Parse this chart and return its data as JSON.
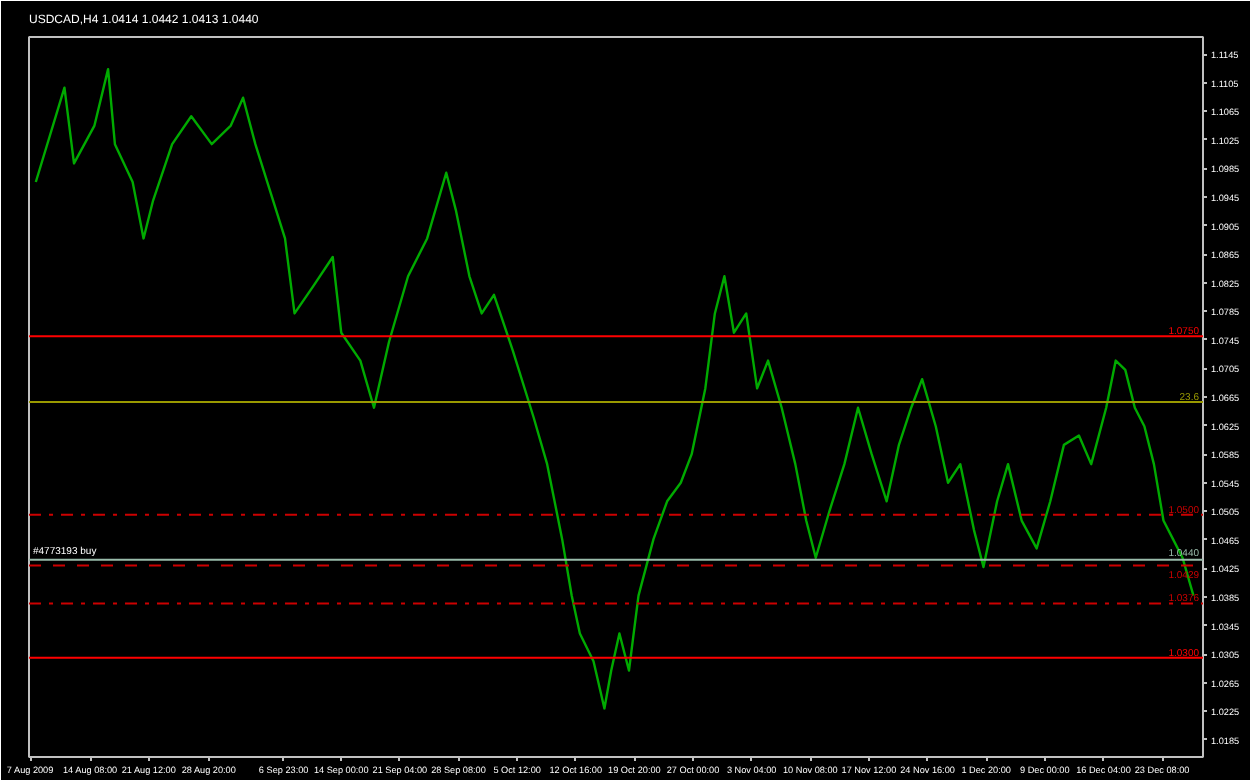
{
  "chart_data": {
    "type": "line",
    "title": "USDCAD,H4  1.0414 1.0442 1.0413 1.0440",
    "x": [
      "2009-08-07T16:00",
      "2009-08-11T04:00",
      "2009-08-12T08:00",
      "2009-08-14T20:00",
      "2009-08-16T12:00",
      "2009-08-17T08:00",
      "2009-08-19T12:00",
      "2009-08-20T20:00",
      "2009-08-22T00:00",
      "2009-08-24T08:00",
      "2009-08-26T16:00",
      "2009-08-29T04:00",
      "2009-08-31T12:00",
      "2009-09-02T00:00",
      "2009-09-03T12:00",
      "2009-09-07T03:00",
      "2009-09-08T07:00",
      "2009-09-10T15:00",
      "2009-09-12T23:00",
      "2009-09-14T00:00",
      "2009-09-16T08:00",
      "2009-09-18T00:00",
      "2009-09-19T20:00",
      "2009-09-22T04:00",
      "2009-09-24T12:00",
      "2009-09-26T20:00",
      "2009-09-28T00:00",
      "2009-09-29T16:00",
      "2009-10-01T04:00",
      "2009-10-02T16:00",
      "2009-10-05T00:00",
      "2009-10-07T12:00",
      "2009-10-09T04:00",
      "2009-10-11T00:00",
      "2009-10-12T04:00",
      "2009-10-13T04:00",
      "2009-10-14T20:00",
      "2009-10-16T04:00",
      "2009-10-17T00:00",
      "2009-10-18T00:00",
      "2009-10-19T04:00",
      "2009-10-20T08:00",
      "2009-10-22T04:00",
      "2009-10-23T20:00",
      "2009-10-25T12:00",
      "2009-10-26T20:00",
      "2009-10-28T12:00",
      "2009-10-29T16:00",
      "2009-10-30T20:00",
      "2009-11-01T00:00",
      "2009-11-02T12:00",
      "2009-11-03T20:00",
      "2009-11-05T04:00",
      "2009-11-06T20:00",
      "2009-11-08T12:00",
      "2009-11-09T20:00",
      "2009-11-11T00:00",
      "2009-11-12T16:00",
      "2009-11-14T12:00",
      "2009-11-16T04:00",
      "2009-11-17T20:00",
      "2009-11-19T16:00",
      "2009-11-21T04:00",
      "2009-11-22T16:00",
      "2009-11-24T00:00",
      "2009-11-25T16:00",
      "2009-11-27T04:00",
      "2009-11-28T16:00",
      "2009-11-30T08:00",
      "2009-12-01T12:00",
      "2009-12-03T04:00",
      "2009-12-04T12:00",
      "2009-12-06T04:00",
      "2009-12-08T00:00",
      "2009-12-09T16:00",
      "2009-12-11T08:00",
      "2009-12-13T04:00",
      "2009-12-14T16:00",
      "2009-12-16T12:00",
      "2009-12-17T16:00",
      "2009-12-18T20:00",
      "2009-12-20T00:00",
      "2009-12-21T04:00",
      "2009-12-22T08:00",
      "2009-12-23T12:00",
      "2009-12-24T16:00",
      "2009-12-25T20:00",
      "2009-12-27T04:00"
    ],
    "series": [
      {
        "color": "#00aa00",
        "values": [
          1.0966,
          1.1098,
          1.0992,
          1.1045,
          1.1124,
          1.1019,
          1.0966,
          1.0887,
          1.094,
          1.1019,
          1.1058,
          1.1019,
          1.1045,
          1.1084,
          1.1019,
          1.0887,
          1.0782,
          1.0821,
          1.0861,
          1.0755,
          1.0716,
          1.065,
          1.0742,
          1.0834,
          1.0887,
          1.0979,
          1.0927,
          1.0834,
          1.0782,
          1.0808,
          1.0729,
          1.0637,
          1.0571,
          1.0466,
          1.0387,
          1.0334,
          1.0295,
          1.0229,
          1.0282,
          1.0334,
          1.0282,
          1.0387,
          1.0466,
          1.0519,
          1.0545,
          1.0585,
          1.0677,
          1.0782,
          1.0834,
          1.0755,
          1.0782,
          1.0677,
          1.0716,
          1.065,
          1.0571,
          1.0492,
          1.044,
          1.0505,
          1.0571,
          1.065,
          1.0585,
          1.0519,
          1.0598,
          1.065,
          1.069,
          1.0624,
          1.0545,
          1.0571,
          1.0479,
          1.0427,
          1.0519,
          1.0571,
          1.0492,
          1.0453,
          1.0519,
          1.0598,
          1.0611,
          1.0571,
          1.065,
          1.0716,
          1.0703,
          1.065,
          1.0624,
          1.0571,
          1.0492,
          1.0466,
          1.044,
          1.0387
        ]
      }
    ],
    "xlim": [
      "2009-08-06T20:00",
      "2009-12-28T08:00"
    ],
    "xticks": [
      {
        "value": "2009-08-07T00:00",
        "label": "7 Aug 2009"
      },
      {
        "value": "2009-08-14T08:00",
        "label": "14 Aug 08:00"
      },
      {
        "value": "2009-08-21T12:00",
        "label": "21 Aug 12:00"
      },
      {
        "value": "2009-08-28T20:00",
        "label": "28 Aug 20:00"
      },
      {
        "value": "2009-09-06T23:00",
        "label": "6 Sep 23:00"
      },
      {
        "value": "2009-09-14T00:00",
        "label": "14 Sep 00:00"
      },
      {
        "value": "2009-09-21T04:00",
        "label": "21 Sep 04:00"
      },
      {
        "value": "2009-09-28T08:00",
        "label": "28 Sep 08:00"
      },
      {
        "value": "2009-10-05T12:00",
        "label": "5 Oct 12:00"
      },
      {
        "value": "2009-10-12T16:00",
        "label": "12 Oct 16:00"
      },
      {
        "value": "2009-10-19T20:00",
        "label": "19 Oct 20:00"
      },
      {
        "value": "2009-10-27T00:00",
        "label": "27 Oct 00:00"
      },
      {
        "value": "2009-11-03T04:00",
        "label": "3 Nov 04:00"
      },
      {
        "value": "2009-11-10T08:00",
        "label": "10 Nov 08:00"
      },
      {
        "value": "2009-11-17T12:00",
        "label": "17 Nov 12:00"
      },
      {
        "value": "2009-11-24T16:00",
        "label": "24 Nov 16:00"
      },
      {
        "value": "2009-12-01T20:00",
        "label": "1 Dec 20:00"
      },
      {
        "value": "2009-12-09T00:00",
        "label": "9 Dec 00:00"
      },
      {
        "value": "2009-12-16T04:00",
        "label": "16 Dec 04:00"
      },
      {
        "value": "2009-12-23T08:00",
        "label": "23 Dec 08:00"
      }
    ],
    "ylim": [
      1.0161,
      1.1169
    ],
    "yticks": [
      1.1145,
      1.1105,
      1.1065,
      1.1025,
      1.0985,
      1.0945,
      1.0905,
      1.0865,
      1.0825,
      1.0785,
      1.0745,
      1.0705,
      1.0665,
      1.0625,
      1.0585,
      1.0545,
      1.0505,
      1.0465,
      1.0425,
      1.0385,
      1.0345,
      1.0305,
      1.0265,
      1.0225,
      1.0185
    ],
    "ref_lines": [
      {
        "axis": "y",
        "value": 1.075,
        "label": "1.0750",
        "color": "#ff0000",
        "line_style": "solid"
      },
      {
        "axis": "y",
        "value": 1.0658,
        "color": "#999900",
        "line_style": "solid"
      },
      {
        "axis": "y",
        "value": 1.05,
        "label": "1.0500",
        "color": "#cc0000",
        "line_style": "dashdot"
      },
      {
        "axis": "y",
        "value": 1.0437,
        "label": "#4773193 buy",
        "color": "#99bbaa",
        "line_style": "solid"
      },
      {
        "axis": "y",
        "value": 1.0429,
        "label": "1.0429",
        "color": "#cc0000",
        "line_style": "dashed"
      },
      {
        "axis": "y",
        "value": 1.0376,
        "label": "1.0376",
        "color": "#cc0000",
        "line_style": "dashdot"
      },
      {
        "axis": "y",
        "value": 1.03,
        "label": "1.0300",
        "color": "#ff0000",
        "line_style": "solid"
      }
    ],
    "annotations": [
      {
        "text": "23.6",
        "x": "2009-12-28T08:00",
        "y": 1.0658
      },
      {
        "text": "1.0440",
        "x": "2009-12-28T08:00",
        "y": 1.044
      }
    ],
    "grid": false
  }
}
